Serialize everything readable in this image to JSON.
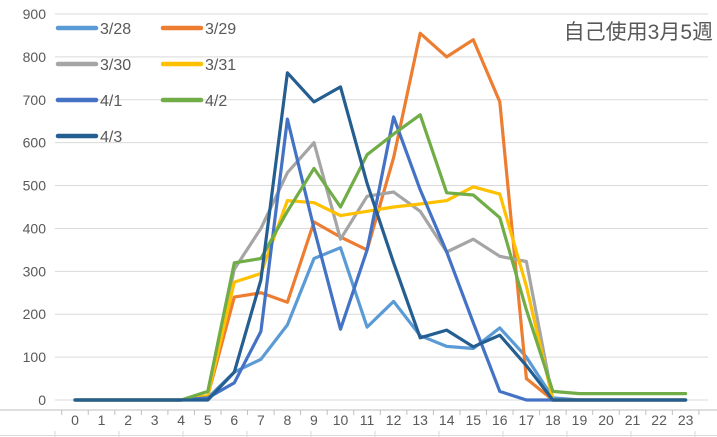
{
  "chart_data": {
    "type": "line",
    "title": "自己使用3月5週",
    "xlabel": "",
    "ylabel": "",
    "x": [
      0,
      1,
      2,
      3,
      4,
      5,
      6,
      7,
      8,
      9,
      10,
      11,
      12,
      13,
      14,
      15,
      16,
      17,
      18,
      19,
      20,
      21,
      22,
      23
    ],
    "x_tick_labels": [
      "0",
      "1",
      "2",
      "3",
      "4",
      "5",
      "6",
      "7",
      "8",
      "9",
      "10",
      "11",
      "12",
      "13",
      "14",
      "15",
      "16",
      "17",
      "18",
      "19",
      "20",
      "21",
      "22",
      "23"
    ],
    "y_ticks": [
      0,
      100,
      200,
      300,
      400,
      500,
      600,
      700,
      800,
      900
    ],
    "ylim": [
      0,
      900
    ],
    "grid": "horizontal",
    "legend_position": "top-left-two-columns",
    "background_color": "#ffffff",
    "text_color": "#595959",
    "gridline_color": "#d9d9d9",
    "series": [
      {
        "name": "3/28",
        "color": "#5B9BD5",
        "values": [
          0,
          0,
          0,
          0,
          0,
          5,
          65,
          95,
          175,
          330,
          355,
          170,
          230,
          150,
          125,
          120,
          168,
          100,
          5,
          0,
          0,
          0,
          0,
          0
        ]
      },
      {
        "name": "3/29",
        "color": "#ED7D31",
        "values": [
          0,
          0,
          0,
          0,
          0,
          10,
          240,
          250,
          228,
          415,
          380,
          350,
          565,
          855,
          800,
          840,
          695,
          50,
          0,
          0,
          0,
          0,
          0,
          0
        ]
      },
      {
        "name": "3/30",
        "color": "#A5A5A5",
        "values": [
          0,
          0,
          0,
          0,
          0,
          10,
          305,
          400,
          530,
          600,
          375,
          475,
          485,
          440,
          345,
          375,
          335,
          323,
          0,
          0,
          0,
          0,
          0,
          0
        ]
      },
      {
        "name": "3/31",
        "color": "#FFC000",
        "values": [
          0,
          0,
          0,
          0,
          0,
          10,
          275,
          295,
          465,
          460,
          430,
          440,
          450,
          457,
          465,
          497,
          480,
          265,
          0,
          0,
          0,
          0,
          0,
          0
        ]
      },
      {
        "name": "4/1",
        "color": "#4472C4",
        "values": [
          0,
          0,
          0,
          0,
          0,
          5,
          40,
          160,
          655,
          400,
          165,
          350,
          660,
          490,
          345,
          180,
          20,
          0,
          0,
          0,
          0,
          0,
          0,
          0
        ]
      },
      {
        "name": "4/2",
        "color": "#70AD47",
        "values": [
          0,
          0,
          0,
          0,
          0,
          20,
          320,
          330,
          440,
          540,
          450,
          572,
          620,
          665,
          483,
          478,
          425,
          210,
          20,
          15,
          15,
          15,
          15,
          15
        ]
      },
      {
        "name": "4/3",
        "color": "#255E91",
        "values": [
          0,
          0,
          0,
          0,
          0,
          0,
          65,
          280,
          763,
          695,
          730,
          505,
          320,
          145,
          163,
          124,
          151,
          80,
          0,
          0,
          0,
          0,
          0,
          0
        ]
      }
    ]
  }
}
